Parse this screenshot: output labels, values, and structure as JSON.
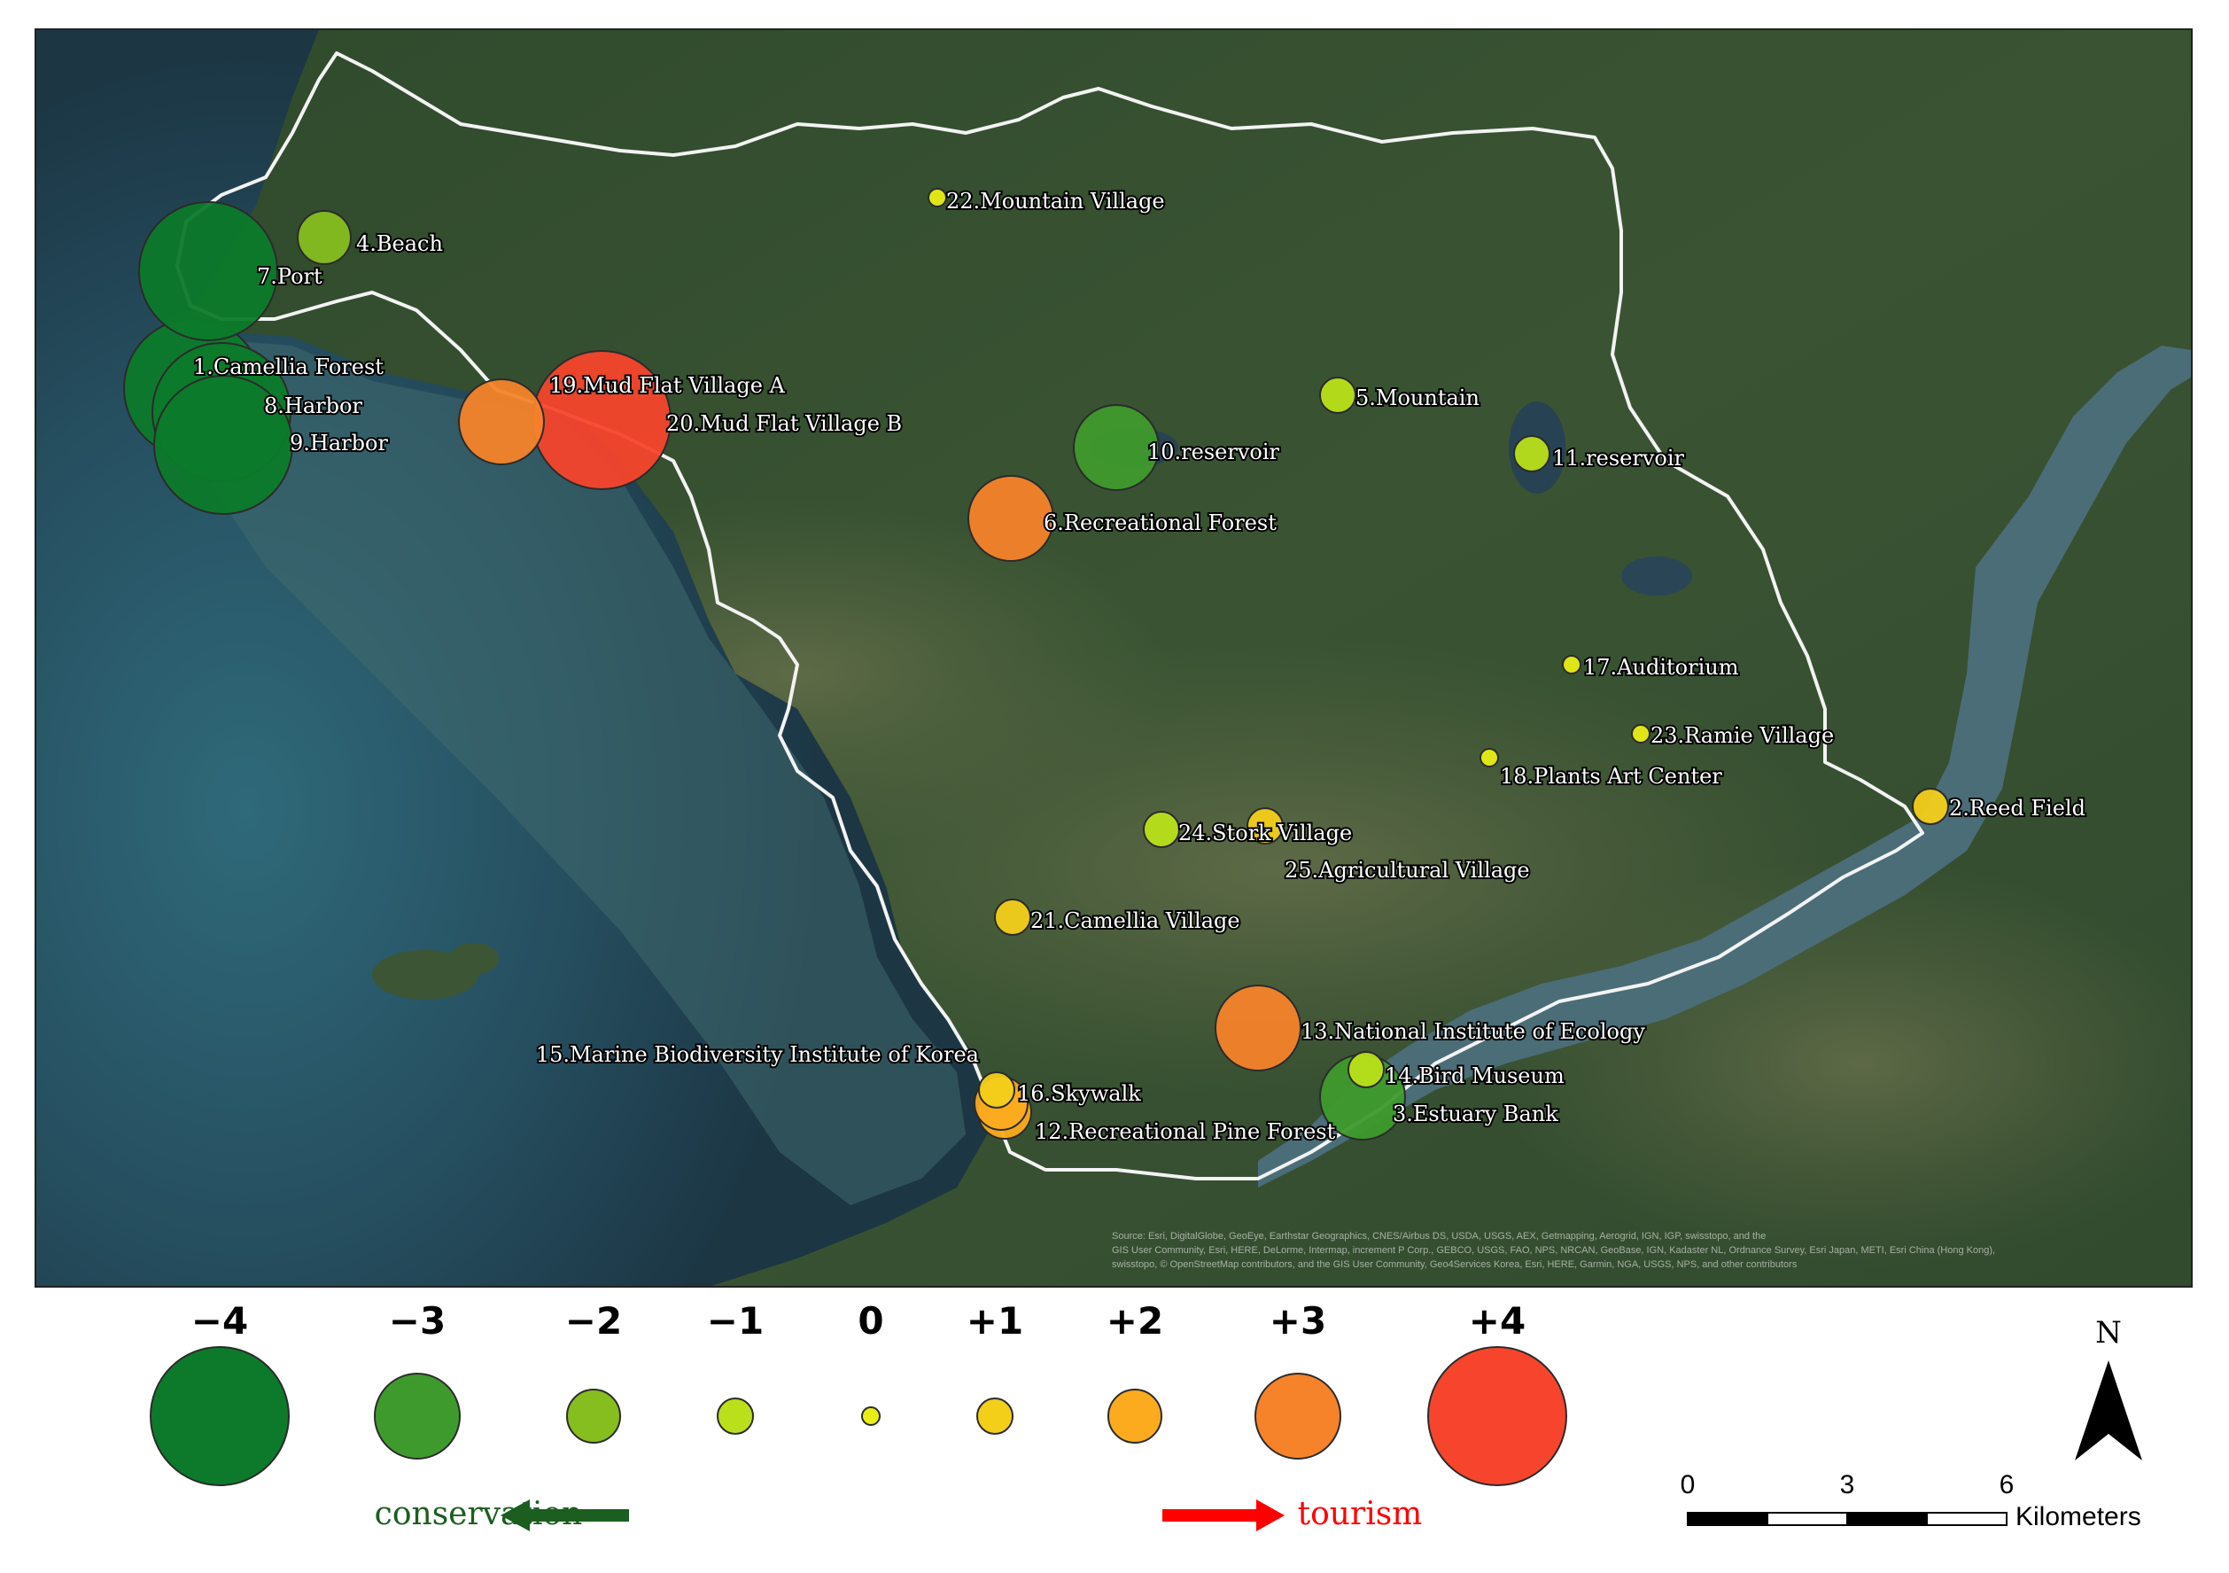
{
  "map": {
    "sites": [
      {
        "label": "1.Camellia Forest",
        "score": -4
      },
      {
        "label": "2.Reed Field",
        "score": 1
      },
      {
        "label": "3.Estuary Bank",
        "score": -3
      },
      {
        "label": "4.Beach",
        "score": -2
      },
      {
        "label": "5.Mountain",
        "score": -1
      },
      {
        "label": "6.Recreational Forest",
        "score": 3
      },
      {
        "label": "7.Port",
        "score": -4
      },
      {
        "label": "8.Harbor",
        "score": -4
      },
      {
        "label": "9.Harbor",
        "score": -4
      },
      {
        "label": "10.reservoir",
        "score": -3
      },
      {
        "label": "11.reservoir",
        "score": -1
      },
      {
        "label": "12.Recreational Pine Forest",
        "score": 2
      },
      {
        "label": "13.National Institute of Ecology",
        "score": 3
      },
      {
        "label": "14.Bird Museum",
        "score": -1
      },
      {
        "label": "15.Marine Biodiversity Institute of Korea",
        "score": 2
      },
      {
        "label": "16.Skywalk",
        "score": 1
      },
      {
        "label": "17.Auditorium",
        "score": 0
      },
      {
        "label": "18.Plants Art Center",
        "score": 0
      },
      {
        "label": "19.Mud Flat Village A",
        "score": 3
      },
      {
        "label": "20.Mud Flat Village B",
        "score": 4
      },
      {
        "label": "21.Camellia Village",
        "score": 1
      },
      {
        "label": "22.Mountain Village",
        "score": 0
      },
      {
        "label": "23.Ramie Village",
        "score": 0
      },
      {
        "label": "24.Stork Village",
        "score": -1
      },
      {
        "label": "25.Agricultural Village",
        "score": 1
      }
    ],
    "attribution": [
      "Source: Esri, DigitalGlobe, GeoEye, Earthstar Geographics, CNES/Airbus DS, USDA, USGS, AEX, Getmapping, Aerogrid, IGN, IGP, swisstopo, and the",
      "GIS User Community, Esri, HERE, DeLorme, Intermap, increment P Corp., GEBCO, USGS, FAO, NPS, NRCAN, GeoBase, IGN, Kadaster NL, Ordnance Survey, Esri Japan, METI, Esri China (Hong Kong),",
      "swisstopo, © OpenStreetMap contributors, and the GIS User Community, Geo4Services Korea, Esri, HERE, Garmin, NGA, USGS, NPS, and other contributors"
    ]
  },
  "legend": {
    "items": [
      {
        "value": "−4",
        "score": -4,
        "color": "#0c7a2a"
      },
      {
        "value": "−3",
        "score": -3,
        "color": "#3e9a2c"
      },
      {
        "value": "−2",
        "score": -2,
        "color": "#86bd1f"
      },
      {
        "value": "−1",
        "score": -1,
        "color": "#b9e01a"
      },
      {
        "value": "0",
        "score": 0,
        "color": "#e8ee16"
      },
      {
        "value": "+1",
        "score": 1,
        "color": "#f3cf1a"
      },
      {
        "value": "+2",
        "score": 2,
        "color": "#fbab1d"
      },
      {
        "value": "+3",
        "score": 3,
        "color": "#f6832a"
      },
      {
        "value": "+4",
        "score": 4,
        "color": "#f6452c"
      }
    ],
    "conservation_label": "conservation",
    "conservation_color": "#1b5e20",
    "tourism_label": "tourism",
    "tourism_color": "#ff0000"
  },
  "north_arrow": {
    "label": "N"
  },
  "scale_bar": {
    "ticks": [
      "0",
      "3",
      "6"
    ],
    "unit": "Kilometers"
  }
}
